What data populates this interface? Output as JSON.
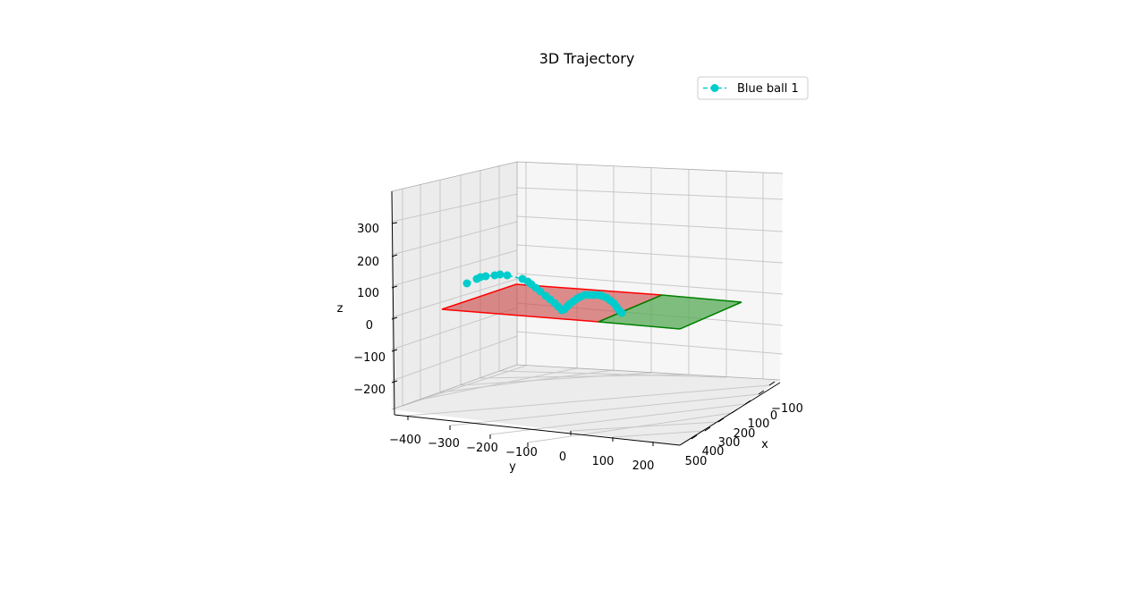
{
  "chart_data": {
    "type": "scatter",
    "projection": "3d",
    "title": "3D Trajectory",
    "xlabel": "x",
    "ylabel": "y",
    "zlabel": "z",
    "xlim": [
      -150,
      550
    ],
    "ylim": [
      -450,
      250
    ],
    "zlim": [
      -280,
      380
    ],
    "x_ticks": [
      "-100",
      "0",
      "100",
      "200",
      "300",
      "400",
      "500"
    ],
    "y_ticks": [
      "-400",
      "-300",
      "-200",
      "-100",
      "0",
      "100",
      "200"
    ],
    "z_ticks": [
      "300",
      "200",
      "100",
      "0",
      "-100",
      "-200"
    ],
    "grid": true,
    "legend_position": "top-right",
    "planes": [
      {
        "color": "#ff0000",
        "fill": "#cc4444"
      },
      {
        "color": "#008000",
        "fill": "#55aa55"
      }
    ],
    "series": [
      {
        "name": "Blue ball 1",
        "color": "#00cccc",
        "marker": "o",
        "linestyle": "--"
      }
    ]
  }
}
